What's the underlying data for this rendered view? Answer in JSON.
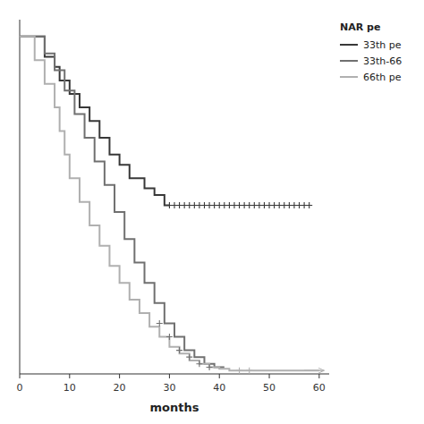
{
  "chart_data": {
    "type": "step",
    "xlabel": "months",
    "xlim": [
      0,
      62
    ],
    "ylim": [
      0,
      1.05
    ],
    "xticks": [
      0,
      10,
      20,
      30,
      40,
      50,
      60
    ],
    "tick_labels": "x",
    "grid": false,
    "legend": "right",
    "legend_title": "NAR pe",
    "series": [
      {
        "name": "33th pe",
        "color": "#383838",
        "x": [
          0,
          5,
          5,
          7,
          7,
          8,
          8,
          10,
          10,
          12,
          12,
          14,
          14,
          16,
          16,
          18,
          18,
          20,
          20,
          22,
          22,
          25,
          25,
          27,
          27,
          29,
          29,
          30,
          30
        ],
        "values": [
          1.0,
          1.0,
          0.94,
          0.94,
          0.91,
          0.91,
          0.87,
          0.87,
          0.83,
          0.83,
          0.79,
          0.79,
          0.75,
          0.75,
          0.7,
          0.7,
          0.65,
          0.65,
          0.62,
          0.62,
          0.58,
          0.58,
          0.55,
          0.55,
          0.53,
          0.53,
          0.5,
          0.5,
          0.5
        ],
        "censored": {
          "marker": "plus",
          "x": [
            30,
            31,
            32,
            33,
            34,
            35,
            36,
            37,
            38,
            39,
            40,
            41,
            42,
            43,
            44,
            45,
            46,
            47,
            48,
            49,
            50,
            51,
            52,
            53,
            54,
            55,
            56,
            57,
            58
          ],
          "values": [
            0.5,
            0.5,
            0.5,
            0.5,
            0.5,
            0.5,
            0.5,
            0.5,
            0.5,
            0.5,
            0.5,
            0.5,
            0.5,
            0.5,
            0.5,
            0.5,
            0.5,
            0.5,
            0.5,
            0.5,
            0.5,
            0.5,
            0.5,
            0.5,
            0.5,
            0.5,
            0.5,
            0.5,
            0.5
          ]
        }
      },
      {
        "name": "33th-66",
        "color": "#707070",
        "x": [
          0,
          5,
          5,
          7,
          7,
          9,
          9,
          11,
          11,
          13,
          13,
          15,
          15,
          17,
          17,
          19,
          19,
          21,
          21,
          23,
          23,
          25,
          25,
          27,
          27,
          29,
          29,
          31,
          31,
          33,
          33,
          35,
          35,
          37,
          37,
          39,
          39,
          41
        ],
        "values": [
          1.0,
          1.0,
          0.95,
          0.95,
          0.9,
          0.9,
          0.84,
          0.84,
          0.77,
          0.77,
          0.7,
          0.7,
          0.63,
          0.63,
          0.56,
          0.56,
          0.48,
          0.48,
          0.4,
          0.4,
          0.33,
          0.33,
          0.27,
          0.27,
          0.21,
          0.21,
          0.15,
          0.15,
          0.11,
          0.11,
          0.07,
          0.07,
          0.05,
          0.05,
          0.03,
          0.03,
          0.02,
          0.02
        ],
        "censored": {
          "marker": "plus",
          "x": [
            28,
            30,
            32,
            34,
            36,
            38
          ],
          "values": [
            0.15,
            0.11,
            0.07,
            0.05,
            0.03,
            0.02
          ]
        }
      },
      {
        "name": "66th pe",
        "color": "#b0b0b0",
        "x": [
          0,
          3,
          3,
          5,
          5,
          7,
          7,
          8,
          8,
          9,
          9,
          10,
          10,
          12,
          12,
          14,
          14,
          16,
          16,
          18,
          18,
          20,
          20,
          22,
          22,
          24,
          24,
          26,
          26,
          28,
          28,
          30,
          30,
          32,
          32,
          34,
          34,
          36,
          36,
          38,
          38,
          40,
          40,
          42,
          42,
          44,
          44,
          48,
          48,
          53,
          53,
          60
        ],
        "values": [
          1.0,
          1.0,
          0.93,
          0.93,
          0.86,
          0.86,
          0.79,
          0.79,
          0.72,
          0.72,
          0.65,
          0.65,
          0.58,
          0.58,
          0.51,
          0.51,
          0.44,
          0.44,
          0.38,
          0.38,
          0.32,
          0.32,
          0.27,
          0.27,
          0.22,
          0.22,
          0.18,
          0.18,
          0.14,
          0.14,
          0.11,
          0.11,
          0.08,
          0.08,
          0.06,
          0.06,
          0.04,
          0.04,
          0.03,
          0.03,
          0.02,
          0.02,
          0.015,
          0.015,
          0.01,
          0.01,
          0.01,
          0.01,
          0.01,
          0.01,
          0.01,
          0.01
        ],
        "censored": {
          "marker": "plus",
          "x": [
            44,
            46
          ],
          "values": [
            0.01,
            0.01
          ]
        }
      }
    ],
    "arrows": [
      {
        "x_from": 57,
        "x_to": 61,
        "y": 0.01,
        "color": "#b0b0b0"
      }
    ]
  }
}
